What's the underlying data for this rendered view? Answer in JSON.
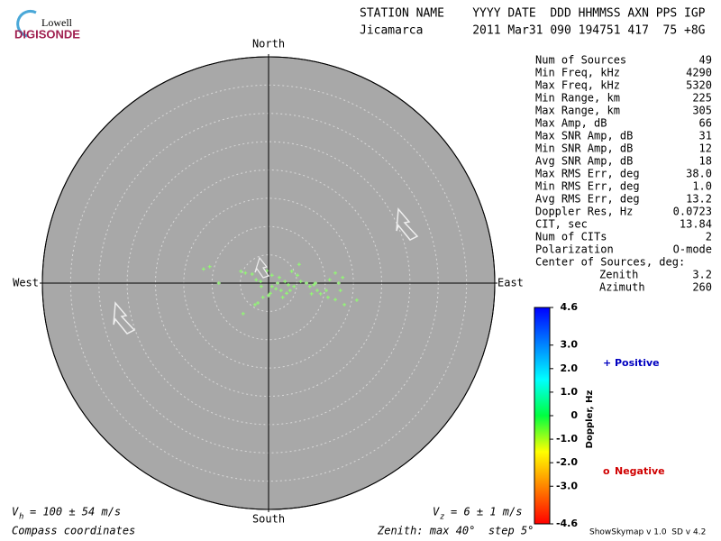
{
  "logo": {
    "top": "Lowell",
    "bottom": "DIGISONDE"
  },
  "header": {
    "columns": "STATION NAME    YYYY DATE  DDD HHMMSS AXN PPS IGP",
    "values": "Jicamarca       2011 Mar31 090 194751 417  75 +8G"
  },
  "chart_data": {
    "type": "skymap",
    "directions": {
      "north": "North",
      "south": "South",
      "east": "East",
      "west": "West"
    },
    "rlim": [
      0,
      40
    ],
    "rticks": [
      5,
      10,
      15,
      20,
      25,
      30,
      35,
      40
    ],
    "x": [
      -10.4,
      -11.5,
      -8.8,
      -4.9,
      -4.1,
      -2.9,
      -2.2,
      -1.4,
      -1.0,
      -1.9,
      -2.4,
      -4.5,
      0.3,
      0,
      0.6,
      1.3,
      1.6,
      2.2,
      2.9,
      3.5,
      3.8,
      3.2,
      4.5,
      5.1,
      5.4,
      4.1,
      6.7,
      7.3,
      8.0,
      8.3,
      7.6,
      9.2,
      10.2,
      10.8,
      11.8,
      12.4,
      12.7,
      13.1,
      10.5,
      13.4,
      15.6,
      1.9,
      0.6,
      -0.3,
      -1.3,
      2.5,
      5.7,
      8.6,
      11.8
    ],
    "y": [
      2.9,
      2.5,
      0,
      2.1,
      1.8,
      1.6,
      0.6,
      0.3,
      -2.5,
      -3.5,
      -3.8,
      -5.4,
      -1.8,
      -2.2,
      -0.6,
      -1.0,
      0,
      -1.3,
      0.3,
      -0.3,
      -1.3,
      -1.8,
      -0.6,
      1.4,
      3.3,
      2.1,
      0,
      -0.6,
      -0.3,
      0,
      -1.9,
      -1.9,
      -1.3,
      0.6,
      1.8,
      0,
      -1.3,
      1.0,
      -2.5,
      -3.8,
      -3.0,
      1.0,
      1.4,
      2.2,
      -0.6,
      -2.5,
      0.3,
      -1.3,
      -2.9
    ],
    "color": "#90ff70"
  },
  "stats": [
    [
      "Num of Sources",
      "49"
    ],
    [
      "Min Freq, kHz",
      "4290"
    ],
    [
      "Max Freq, kHz",
      "5320"
    ],
    [
      "Min Range, km",
      "225"
    ],
    [
      "Max Range, km",
      "305"
    ],
    [
      "Max Amp, dB",
      "66"
    ],
    [
      "Max SNR Amp, dB",
      "31"
    ],
    [
      "Min SNR Amp, dB",
      "12"
    ],
    [
      "Avg SNR Amp, dB",
      "18"
    ],
    [
      "Max RMS Err, deg",
      "38.0"
    ],
    [
      "Min RMS Err, deg",
      "1.0"
    ],
    [
      "Avg RMS Err, deg",
      "13.2"
    ],
    [
      "Doppler Res, Hz",
      "0.0723"
    ],
    [
      "CIT, sec",
      "13.84"
    ],
    [
      "Num of CITs",
      "2"
    ],
    [
      "Polarization",
      "O-mode"
    ]
  ],
  "center": {
    "title": "Center of Sources, deg:",
    "rows": [
      [
        "Zenith",
        "3.2"
      ],
      [
        "Azimuth",
        "260"
      ]
    ]
  },
  "colorbar": {
    "label": "Doppler, Hz",
    "lim": [
      -4.6,
      4.6
    ],
    "ticks": [
      4.6,
      {
        "value": 3.0,
        "label": "3.0"
      },
      {
        "value": 2.0,
        "label": "2.0"
      },
      {
        "value": 1.0,
        "label": "1.0"
      },
      0,
      {
        "value": -1.0,
        "label": "-1.0"
      },
      {
        "value": -2.0,
        "label": "-2.0"
      },
      {
        "value": -3.0,
        "label": "-3.0"
      },
      -4.6
    ],
    "colors": [
      "#ff0000",
      "#ff8000",
      "#ffff00",
      "#00ff40",
      "#00ffff",
      "#0080ff",
      "#0000ff"
    ]
  },
  "legend": {
    "positive": {
      "symbol": "+",
      "text": "Positive",
      "color": "#0000c0"
    },
    "negative": {
      "symbol": "o",
      "text": "Negative",
      "color": "#d00000"
    }
  },
  "footer": {
    "vh": {
      "symbol": "V",
      "sub": "h",
      "text": "= 100 ± 54 m/s"
    },
    "vz": {
      "symbol": "V",
      "sub": "z",
      "text": "= 6 ± 1 m/s"
    },
    "coords": "Compass coordinates",
    "zenith": "Zenith: max 40°  step 5°",
    "version": "ShowSkymap v 1.0  SD v 4.2"
  }
}
